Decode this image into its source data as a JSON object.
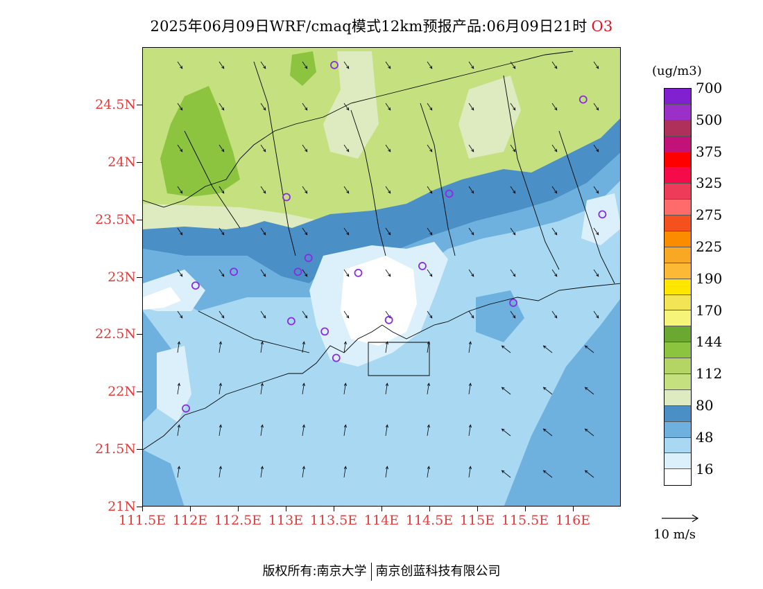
{
  "title": {
    "main": "2025年06月09日WRF/cmaq模式12km预报产品:06月09日21时",
    "species": "O3"
  },
  "map": {
    "lon_range": [
      111.5,
      116.5
    ],
    "lat_range": [
      21.0,
      25.0
    ],
    "lon_ticks": [
      {
        "value": 111.5,
        "label": "111.5E"
      },
      {
        "value": 112,
        "label": "112E"
      },
      {
        "value": 112.5,
        "label": "112.5E"
      },
      {
        "value": 113,
        "label": "113E"
      },
      {
        "value": 113.5,
        "label": "113.5E"
      },
      {
        "value": 114,
        "label": "114E"
      },
      {
        "value": 114.5,
        "label": "114.5E"
      },
      {
        "value": 115,
        "label": "115E"
      },
      {
        "value": 115.5,
        "label": "115.5E"
      },
      {
        "value": 116,
        "label": "116E"
      }
    ],
    "lat_ticks": [
      {
        "value": 21,
        "label": "21N"
      },
      {
        "value": 21.5,
        "label": "21.5N"
      },
      {
        "value": 22,
        "label": "22N"
      },
      {
        "value": 22.5,
        "label": "22.5N"
      },
      {
        "value": 23,
        "label": "23N"
      },
      {
        "value": 23.5,
        "label": "23.5N"
      },
      {
        "value": 24,
        "label": "24N"
      },
      {
        "value": 24.5,
        "label": "24.5N"
      }
    ],
    "stations": [
      {
        "lon": 113.5,
        "lat": 24.85
      },
      {
        "lon": 116.1,
        "lat": 24.55
      },
      {
        "lon": 113.0,
        "lat": 23.7
      },
      {
        "lon": 114.7,
        "lat": 23.73
      },
      {
        "lon": 116.3,
        "lat": 23.55
      },
      {
        "lon": 113.23,
        "lat": 23.17
      },
      {
        "lon": 112.45,
        "lat": 23.05
      },
      {
        "lon": 113.12,
        "lat": 23.05
      },
      {
        "lon": 113.75,
        "lat": 23.04
      },
      {
        "lon": 114.42,
        "lat": 23.1
      },
      {
        "lon": 112.05,
        "lat": 22.93
      },
      {
        "lon": 113.05,
        "lat": 22.62
      },
      {
        "lon": 113.4,
        "lat": 22.53
      },
      {
        "lon": 114.07,
        "lat": 22.63
      },
      {
        "lon": 115.37,
        "lat": 22.78
      },
      {
        "lon": 113.52,
        "lat": 22.3
      },
      {
        "lon": 111.95,
        "lat": 21.86
      }
    ],
    "station_color": "#8a2be2"
  },
  "colorbar": {
    "unit": "(ug/m3)",
    "colors": [
      "#ffffff",
      "#dcf0fb",
      "#a8d8f2",
      "#6eb1de",
      "#4a90c6",
      "#deebc0",
      "#c5e07e",
      "#b4d565",
      "#8cc43f",
      "#6aa832",
      "#f6f57a",
      "#f3e455",
      "#ffe600",
      "#fbb935",
      "#f9a825",
      "#fb8c00",
      "#f4511e",
      "#ff6b6b",
      "#ef3b5a",
      "#f50a4a",
      "#ff0000",
      "#c2127a",
      "#b0305c",
      "#9b30c8",
      "#8020d0"
    ],
    "labels": [
      "16",
      "48",
      "80",
      "112",
      "144",
      "170",
      "190",
      "225",
      "275",
      "325",
      "375",
      "500",
      "700"
    ]
  },
  "reference": {
    "label": "10 m/s"
  },
  "footer": {
    "left": "版权所有:南京大学",
    "right": "南京创蓝科技有限公司"
  },
  "colors": {
    "axis_label": "#e23b3b",
    "boundary": "#000000"
  }
}
